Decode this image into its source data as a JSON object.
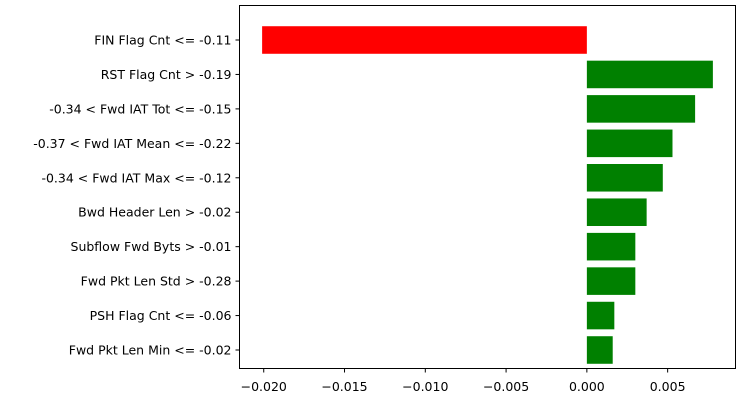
{
  "chart_data": {
    "type": "bar",
    "orientation": "horizontal",
    "title": "",
    "xlabel": "",
    "ylabel": "",
    "xlim": [
      -0.0215,
      0.0092
    ],
    "x_ticks": [
      -0.02,
      -0.015,
      -0.01,
      -0.005,
      0.0,
      0.005
    ],
    "x_tick_labels": [
      "−0.020",
      "−0.015",
      "−0.010",
      "−0.005",
      "0.000",
      "0.005"
    ],
    "grid": false,
    "categories": [
      "FIN Flag Cnt <= -0.11",
      "RST Flag Cnt > -0.19",
      "-0.34 < Fwd IAT Tot <= -0.15",
      "-0.37 < Fwd IAT Mean <= -0.22",
      "-0.34 < Fwd IAT Max <= -0.12",
      "Bwd Header Len > -0.02",
      "Subflow Fwd Byts > -0.01",
      "Fwd Pkt Len Std > -0.28",
      "PSH Flag Cnt <= -0.06",
      "Fwd Pkt Len Min <= -0.02"
    ],
    "values": [
      -0.0201,
      0.0078,
      0.0067,
      0.0053,
      0.0047,
      0.0037,
      0.003,
      0.003,
      0.0017,
      0.0016
    ],
    "colors": {
      "negative": "#ff0000",
      "positive": "#008000"
    }
  }
}
